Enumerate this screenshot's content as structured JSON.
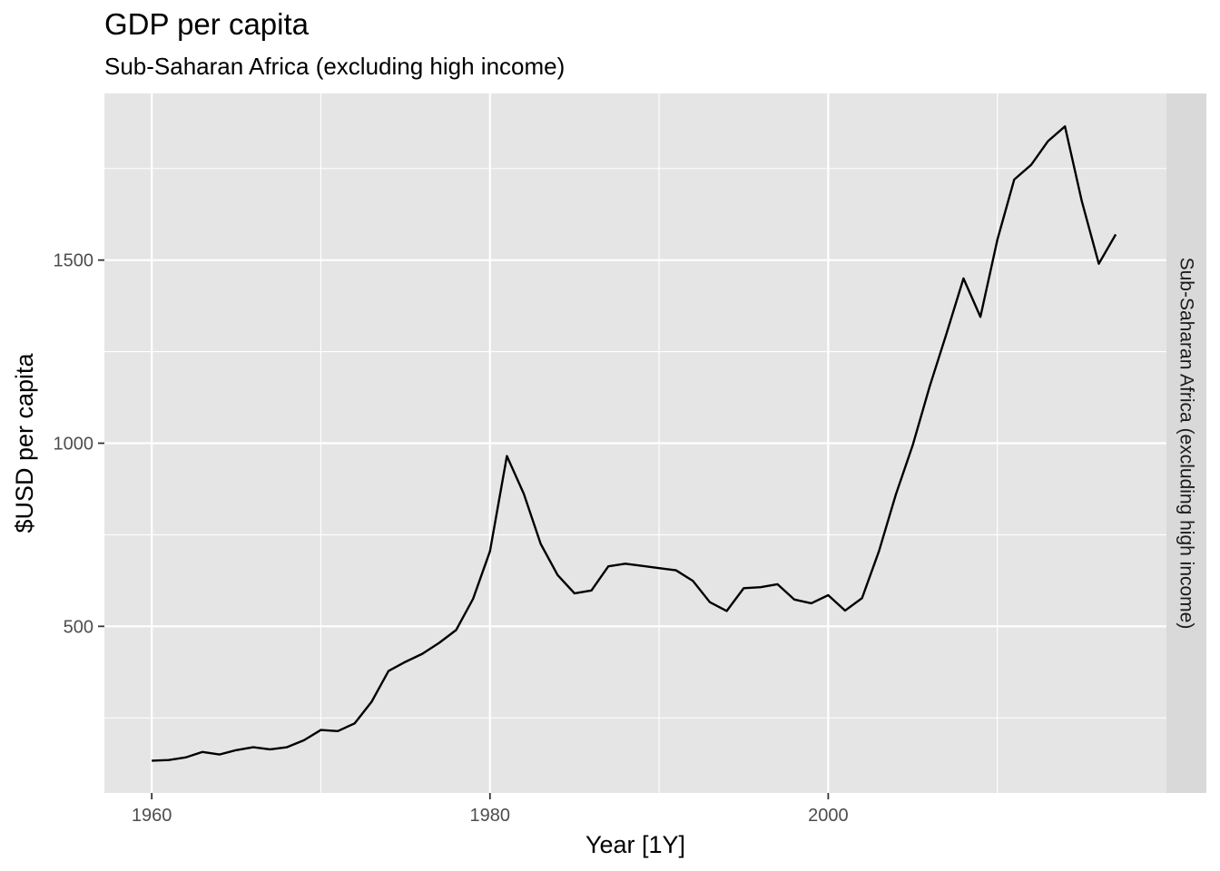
{
  "chart_data": {
    "type": "line",
    "title": "GDP per capita",
    "subtitle": "Sub-Saharan Africa (excluding high income)",
    "xlabel": "Year [1Y]",
    "ylabel": "$USD per capita",
    "facet_label": "Sub-Saharan Africa (excluding high income)",
    "xlim": [
      1957.2,
      2020.0
    ],
    "ylim": [
      45,
      1955
    ],
    "x_ticks": [
      1960,
      1980,
      2000
    ],
    "y_ticks": [
      500,
      1000,
      1500
    ],
    "grid": true,
    "legend": "none",
    "colors": {
      "panel": "#e5e5e5",
      "grid": "#ffffff",
      "strip": "#d9d9d9",
      "line": "#000000",
      "tick_label": "#4d4d4d"
    },
    "series": [
      {
        "x": [
          1960,
          1961,
          1962,
          1963,
          1964,
          1965,
          1966,
          1967,
          1968,
          1969,
          1970,
          1971,
          1972,
          1973,
          1974,
          1975,
          1976,
          1977,
          1978,
          1979,
          1980,
          1981,
          1982,
          1983,
          1984,
          1985,
          1986,
          1987,
          1988,
          1989,
          1990,
          1991,
          1992,
          1993,
          1994,
          1995,
          1996,
          1997,
          1998,
          1999,
          2000,
          2001,
          2002,
          2003,
          2004,
          2005,
          2006,
          2007,
          2008,
          2009,
          2010,
          2011,
          2012,
          2013,
          2014,
          2015,
          2016,
          2017
        ],
        "values": [
          133,
          135,
          142,
          157,
          150,
          162,
          170,
          164,
          170,
          189,
          217,
          214,
          235,
          294,
          378,
          403,
          425,
          455,
          490,
          575,
          705,
          965,
          862,
          725,
          640,
          590,
          598,
          664,
          671,
          665,
          659,
          653,
          624,
          566,
          542,
          604,
          607,
          615,
          573,
          563,
          585,
          543,
          577,
          705,
          860,
          995,
          1155,
          1300,
          1450,
          1345,
          1555,
          1720,
          1760,
          1825,
          1865,
          1660,
          1490,
          1570
        ]
      }
    ]
  }
}
